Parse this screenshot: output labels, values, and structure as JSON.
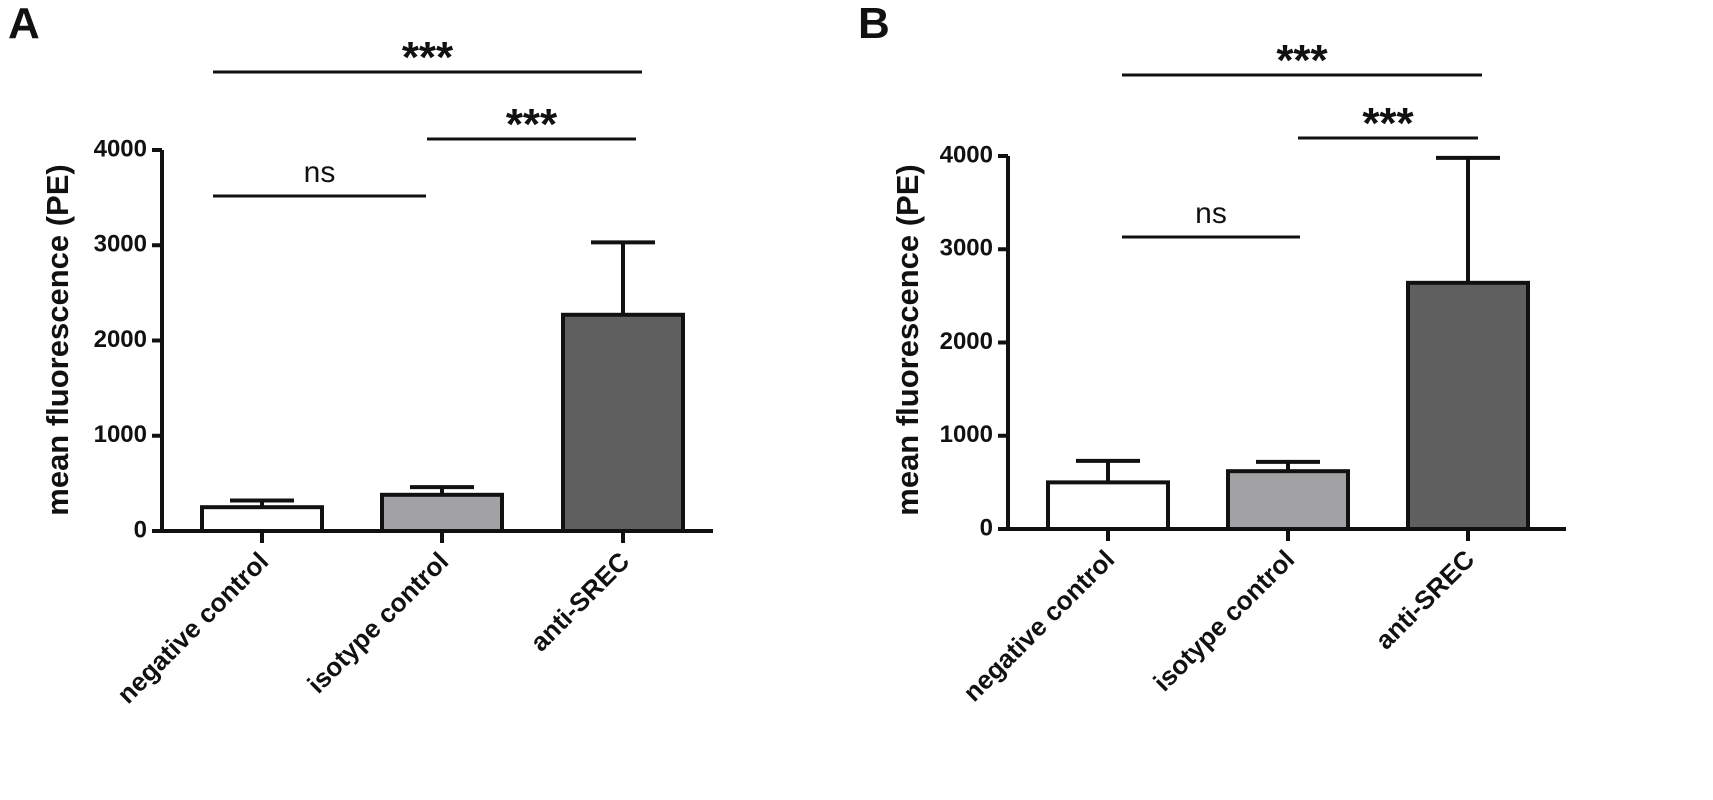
{
  "chart_data": [
    {
      "panel": "A",
      "type": "bar",
      "ylabel": "mean fluorescence (PE)",
      "ylim": [
        0,
        4000
      ],
      "yticks": [
        0,
        1000,
        2000,
        3000,
        4000
      ],
      "categories": [
        "negative control",
        "isotype control",
        "anti-SREC"
      ],
      "values": [
        250,
        380,
        2270
      ],
      "error_upper": [
        320,
        460,
        3030
      ],
      "bar_colors": [
        "#ffffff",
        "#a2a2a4",
        "#5f5f5f"
      ],
      "significance": [
        {
          "from": 0,
          "to": 2,
          "label": "***"
        },
        {
          "from": 1,
          "to": 2,
          "label": "***"
        },
        {
          "from": 0,
          "to": 1,
          "label": "ns"
        }
      ]
    },
    {
      "panel": "B",
      "type": "bar",
      "ylabel": "mean fluorescence (PE)",
      "ylim": [
        0,
        4000
      ],
      "yticks": [
        0,
        1000,
        2000,
        3000,
        4000
      ],
      "categories": [
        "negative control",
        "isotype control",
        "anti-SREC"
      ],
      "values": [
        500,
        620,
        2640
      ],
      "error_upper": [
        730,
        720,
        3980
      ],
      "bar_colors": [
        "#ffffff",
        "#a2a2a4",
        "#5f5f5f"
      ],
      "significance": [
        {
          "from": 0,
          "to": 2,
          "label": "***"
        },
        {
          "from": 1,
          "to": 2,
          "label": "***"
        },
        {
          "from": 0,
          "to": 1,
          "label": "ns"
        }
      ]
    }
  ]
}
